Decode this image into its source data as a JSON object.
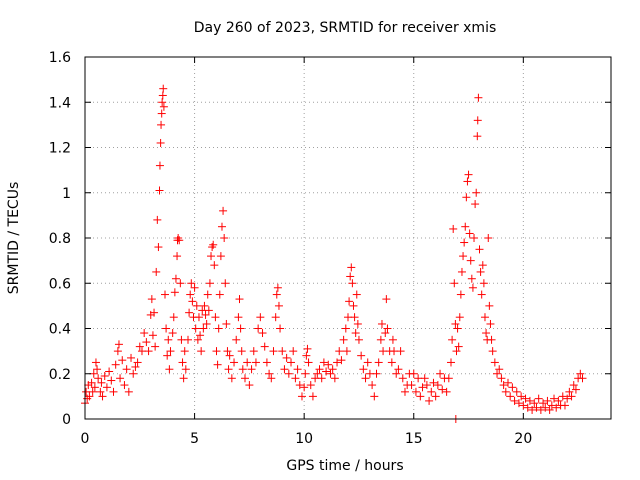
{
  "chart_data": {
    "type": "scatter",
    "title": "Day 260 of 2023, SRMTID for receiver xmis",
    "xlabel": "GPS time / hours",
    "ylabel": "SRMTID / TECUs",
    "xlim": [
      0,
      24
    ],
    "ylim": [
      0,
      1.6
    ],
    "xticks": [
      0,
      5,
      10,
      15,
      20
    ],
    "xtick_labels": [
      "0",
      "5",
      "10",
      "15",
      "20"
    ],
    "yticks": [
      0,
      0.2,
      0.4,
      0.6,
      0.8,
      1.0,
      1.2,
      1.4,
      1.6
    ],
    "ytick_labels": [
      "0",
      "0.2",
      "0.4",
      "0.6",
      "0.8",
      "1",
      "1.2",
      "1.4",
      "1.6"
    ],
    "grid": true,
    "marker": "+",
    "series_color": "#ff0000",
    "series": [
      {
        "name": "SRMTID",
        "points": [
          [
            0.0,
            0.07
          ],
          [
            0.05,
            0.12
          ],
          [
            0.1,
            0.09
          ],
          [
            0.15,
            0.15
          ],
          [
            0.2,
            0.1
          ],
          [
            0.3,
            0.16
          ],
          [
            0.35,
            0.12
          ],
          [
            0.4,
            0.2
          ],
          [
            0.45,
            0.14
          ],
          [
            0.5,
            0.25
          ],
          [
            0.55,
            0.22
          ],
          [
            0.6,
            0.18
          ],
          [
            0.7,
            0.12
          ],
          [
            0.75,
            0.16
          ],
          [
            0.8,
            0.1
          ],
          [
            0.9,
            0.19
          ],
          [
            1.0,
            0.14
          ],
          [
            1.1,
            0.21
          ],
          [
            1.2,
            0.17
          ],
          [
            1.3,
            0.12
          ],
          [
            1.4,
            0.24
          ],
          [
            1.5,
            0.3
          ],
          [
            1.55,
            0.33
          ],
          [
            1.6,
            0.18
          ],
          [
            1.7,
            0.26
          ],
          [
            1.8,
            0.15
          ],
          [
            1.9,
            0.22
          ],
          [
            2.0,
            0.12
          ],
          [
            2.1,
            0.27
          ],
          [
            2.2,
            0.2
          ],
          [
            2.3,
            0.23
          ],
          [
            2.4,
            0.25
          ],
          [
            2.5,
            0.32
          ],
          [
            2.6,
            0.3
          ],
          [
            2.7,
            0.38
          ],
          [
            2.8,
            0.34
          ],
          [
            2.9,
            0.3
          ],
          [
            3.0,
            0.46
          ],
          [
            3.05,
            0.53
          ],
          [
            3.1,
            0.37
          ],
          [
            3.15,
            0.47
          ],
          [
            3.2,
            0.32
          ],
          [
            3.25,
            0.65
          ],
          [
            3.3,
            0.88
          ],
          [
            3.35,
            0.76
          ],
          [
            3.4,
            1.01
          ],
          [
            3.42,
            1.12
          ],
          [
            3.45,
            1.22
          ],
          [
            3.47,
            1.3
          ],
          [
            3.5,
            1.35
          ],
          [
            3.52,
            1.4
          ],
          [
            3.55,
            1.43
          ],
          [
            3.57,
            1.46
          ],
          [
            3.6,
            1.38
          ],
          [
            3.65,
            0.55
          ],
          [
            3.7,
            0.4
          ],
          [
            3.75,
            0.28
          ],
          [
            3.8,
            0.35
          ],
          [
            3.85,
            0.22
          ],
          [
            3.9,
            0.3
          ],
          [
            4.0,
            0.38
          ],
          [
            4.05,
            0.45
          ],
          [
            4.1,
            0.56
          ],
          [
            4.15,
            0.62
          ],
          [
            4.2,
            0.72
          ],
          [
            4.22,
            0.79
          ],
          [
            4.25,
            0.8
          ],
          [
            4.3,
            0.79
          ],
          [
            4.35,
            0.6
          ],
          [
            4.4,
            0.35
          ],
          [
            4.45,
            0.25
          ],
          [
            4.5,
            0.18
          ],
          [
            4.55,
            0.3
          ],
          [
            4.6,
            0.22
          ],
          [
            4.7,
            0.35
          ],
          [
            4.75,
            0.47
          ],
          [
            4.8,
            0.55
          ],
          [
            4.85,
            0.6
          ],
          [
            4.9,
            0.52
          ],
          [
            4.95,
            0.45
          ],
          [
            5.0,
            0.58
          ],
          [
            5.05,
            0.4
          ],
          [
            5.1,
            0.5
          ],
          [
            5.15,
            0.35
          ],
          [
            5.2,
            0.45
          ],
          [
            5.25,
            0.37
          ],
          [
            5.3,
            0.3
          ],
          [
            5.35,
            0.48
          ],
          [
            5.4,
            0.4
          ],
          [
            5.45,
            0.5
          ],
          [
            5.5,
            0.46
          ],
          [
            5.55,
            0.42
          ],
          [
            5.6,
            0.55
          ],
          [
            5.65,
            0.48
          ],
          [
            5.7,
            0.6
          ],
          [
            5.75,
            0.72
          ],
          [
            5.8,
            0.76
          ],
          [
            5.85,
            0.77
          ],
          [
            5.9,
            0.68
          ],
          [
            5.95,
            0.45
          ],
          [
            6.0,
            0.3
          ],
          [
            6.05,
            0.24
          ],
          [
            6.1,
            0.4
          ],
          [
            6.15,
            0.55
          ],
          [
            6.2,
            0.72
          ],
          [
            6.25,
            0.85
          ],
          [
            6.3,
            0.92
          ],
          [
            6.35,
            0.8
          ],
          [
            6.4,
            0.6
          ],
          [
            6.45,
            0.42
          ],
          [
            6.5,
            0.3
          ],
          [
            6.55,
            0.22
          ],
          [
            6.6,
            0.28
          ],
          [
            6.7,
            0.18
          ],
          [
            6.8,
            0.25
          ],
          [
            6.9,
            0.35
          ],
          [
            7.0,
            0.45
          ],
          [
            7.05,
            0.53
          ],
          [
            7.1,
            0.4
          ],
          [
            7.15,
            0.3
          ],
          [
            7.2,
            0.22
          ],
          [
            7.3,
            0.18
          ],
          [
            7.4,
            0.25
          ],
          [
            7.5,
            0.15
          ],
          [
            7.6,
            0.22
          ],
          [
            7.7,
            0.3
          ],
          [
            7.8,
            0.25
          ],
          [
            7.9,
            0.4
          ],
          [
            8.0,
            0.45
          ],
          [
            8.1,
            0.38
          ],
          [
            8.2,
            0.32
          ],
          [
            8.3,
            0.25
          ],
          [
            8.4,
            0.2
          ],
          [
            8.5,
            0.18
          ],
          [
            8.6,
            0.3
          ],
          [
            8.7,
            0.45
          ],
          [
            8.75,
            0.55
          ],
          [
            8.8,
            0.58
          ],
          [
            8.85,
            0.5
          ],
          [
            8.9,
            0.4
          ],
          [
            9.0,
            0.3
          ],
          [
            9.1,
            0.22
          ],
          [
            9.2,
            0.27
          ],
          [
            9.3,
            0.2
          ],
          [
            9.4,
            0.25
          ],
          [
            9.5,
            0.3
          ],
          [
            9.6,
            0.18
          ],
          [
            9.7,
            0.22
          ],
          [
            9.8,
            0.15
          ],
          [
            9.9,
            0.1
          ],
          [
            10.0,
            0.14
          ],
          [
            10.05,
            0.2
          ],
          [
            10.1,
            0.28
          ],
          [
            10.15,
            0.31
          ],
          [
            10.2,
            0.25
          ],
          [
            10.3,
            0.15
          ],
          [
            10.4,
            0.1
          ],
          [
            10.5,
            0.18
          ],
          [
            10.6,
            0.2
          ],
          [
            10.7,
            0.22
          ],
          [
            10.8,
            0.18
          ],
          [
            10.9,
            0.25
          ],
          [
            11.0,
            0.21
          ],
          [
            11.1,
            0.24
          ],
          [
            11.2,
            0.2
          ],
          [
            11.3,
            0.22
          ],
          [
            11.4,
            0.18
          ],
          [
            11.5,
            0.25
          ],
          [
            11.6,
            0.3
          ],
          [
            11.7,
            0.26
          ],
          [
            11.8,
            0.35
          ],
          [
            11.9,
            0.4
          ],
          [
            11.95,
            0.3
          ],
          [
            12.0,
            0.45
          ],
          [
            12.05,
            0.52
          ],
          [
            12.1,
            0.63
          ],
          [
            12.15,
            0.67
          ],
          [
            12.2,
            0.6
          ],
          [
            12.25,
            0.5
          ],
          [
            12.3,
            0.45
          ],
          [
            12.35,
            0.38
          ],
          [
            12.4,
            0.55
          ],
          [
            12.45,
            0.42
          ],
          [
            12.5,
            0.35
          ],
          [
            12.6,
            0.28
          ],
          [
            12.7,
            0.22
          ],
          [
            12.8,
            0.18
          ],
          [
            12.9,
            0.25
          ],
          [
            13.0,
            0.2
          ],
          [
            13.1,
            0.15
          ],
          [
            13.2,
            0.1
          ],
          [
            13.3,
            0.2
          ],
          [
            13.4,
            0.25
          ],
          [
            13.5,
            0.35
          ],
          [
            13.55,
            0.42
          ],
          [
            13.6,
            0.3
          ],
          [
            13.7,
            0.38
          ],
          [
            13.75,
            0.53
          ],
          [
            13.8,
            0.4
          ],
          [
            13.9,
            0.3
          ],
          [
            14.0,
            0.25
          ],
          [
            14.05,
            0.35
          ],
          [
            14.1,
            0.3
          ],
          [
            14.2,
            0.2
          ],
          [
            14.3,
            0.22
          ],
          [
            14.4,
            0.3
          ],
          [
            14.5,
            0.18
          ],
          [
            14.6,
            0.12
          ],
          [
            14.7,
            0.15
          ],
          [
            14.8,
            0.2
          ],
          [
            14.9,
            0.15
          ],
          [
            15.0,
            0.2
          ],
          [
            15.1,
            0.12
          ],
          [
            15.2,
            0.18
          ],
          [
            15.3,
            0.1
          ],
          [
            15.4,
            0.14
          ],
          [
            15.5,
            0.18
          ],
          [
            15.6,
            0.15
          ],
          [
            15.7,
            0.08
          ],
          [
            15.8,
            0.12
          ],
          [
            15.9,
            0.16
          ],
          [
            16.0,
            0.1
          ],
          [
            16.1,
            0.15
          ],
          [
            16.2,
            0.2
          ],
          [
            16.3,
            0.13
          ],
          [
            16.4,
            0.18
          ],
          [
            16.5,
            0.12
          ],
          [
            16.6,
            0.18
          ],
          [
            16.7,
            0.25
          ],
          [
            16.75,
            0.35
          ],
          [
            16.8,
            0.84
          ],
          [
            16.85,
            0.6
          ],
          [
            16.9,
            0.42
          ],
          [
            16.92,
            0.0
          ],
          [
            16.95,
            0.3
          ],
          [
            17.0,
            0.4
          ],
          [
            17.05,
            0.32
          ],
          [
            17.1,
            0.45
          ],
          [
            17.15,
            0.55
          ],
          [
            17.2,
            0.65
          ],
          [
            17.25,
            0.72
          ],
          [
            17.3,
            0.78
          ],
          [
            17.35,
            0.85
          ],
          [
            17.4,
            0.98
          ],
          [
            17.45,
            1.05
          ],
          [
            17.5,
            1.08
          ],
          [
            17.55,
            0.82
          ],
          [
            17.6,
            0.7
          ],
          [
            17.65,
            0.62
          ],
          [
            17.7,
            0.58
          ],
          [
            17.75,
            0.8
          ],
          [
            17.8,
            0.95
          ],
          [
            17.85,
            1.0
          ],
          [
            17.9,
            1.25
          ],
          [
            17.92,
            1.32
          ],
          [
            17.95,
            1.42
          ],
          [
            18.0,
            0.75
          ],
          [
            18.05,
            0.65
          ],
          [
            18.1,
            0.55
          ],
          [
            18.15,
            0.68
          ],
          [
            18.2,
            0.6
          ],
          [
            18.25,
            0.45
          ],
          [
            18.3,
            0.38
          ],
          [
            18.35,
            0.35
          ],
          [
            18.4,
            0.8
          ],
          [
            18.45,
            0.5
          ],
          [
            18.5,
            0.42
          ],
          [
            18.55,
            0.35
          ],
          [
            18.6,
            0.3
          ],
          [
            18.7,
            0.25
          ],
          [
            18.8,
            0.2
          ],
          [
            18.9,
            0.22
          ],
          [
            19.0,
            0.18
          ],
          [
            19.1,
            0.15
          ],
          [
            19.2,
            0.12
          ],
          [
            19.3,
            0.16
          ],
          [
            19.4,
            0.1
          ],
          [
            19.5,
            0.14
          ],
          [
            19.6,
            0.08
          ],
          [
            19.7,
            0.12
          ],
          [
            19.8,
            0.07
          ],
          [
            19.9,
            0.1
          ],
          [
            20.0,
            0.06
          ],
          [
            20.1,
            0.09
          ],
          [
            20.2,
            0.05
          ],
          [
            20.3,
            0.08
          ],
          [
            20.4,
            0.04
          ],
          [
            20.5,
            0.07
          ],
          [
            20.6,
            0.05
          ],
          [
            20.7,
            0.09
          ],
          [
            20.8,
            0.04
          ],
          [
            20.9,
            0.07
          ],
          [
            21.0,
            0.05
          ],
          [
            21.1,
            0.08
          ],
          [
            21.2,
            0.04
          ],
          [
            21.3,
            0.06
          ],
          [
            21.4,
            0.09
          ],
          [
            21.5,
            0.05
          ],
          [
            21.6,
            0.08
          ],
          [
            21.7,
            0.06
          ],
          [
            21.8,
            0.1
          ],
          [
            21.9,
            0.06
          ],
          [
            22.0,
            0.09
          ],
          [
            22.1,
            0.12
          ],
          [
            22.2,
            0.1
          ],
          [
            22.3,
            0.15
          ],
          [
            22.4,
            0.13
          ],
          [
            22.5,
            0.18
          ],
          [
            22.6,
            0.2
          ],
          [
            22.7,
            0.18
          ]
        ]
      }
    ]
  }
}
